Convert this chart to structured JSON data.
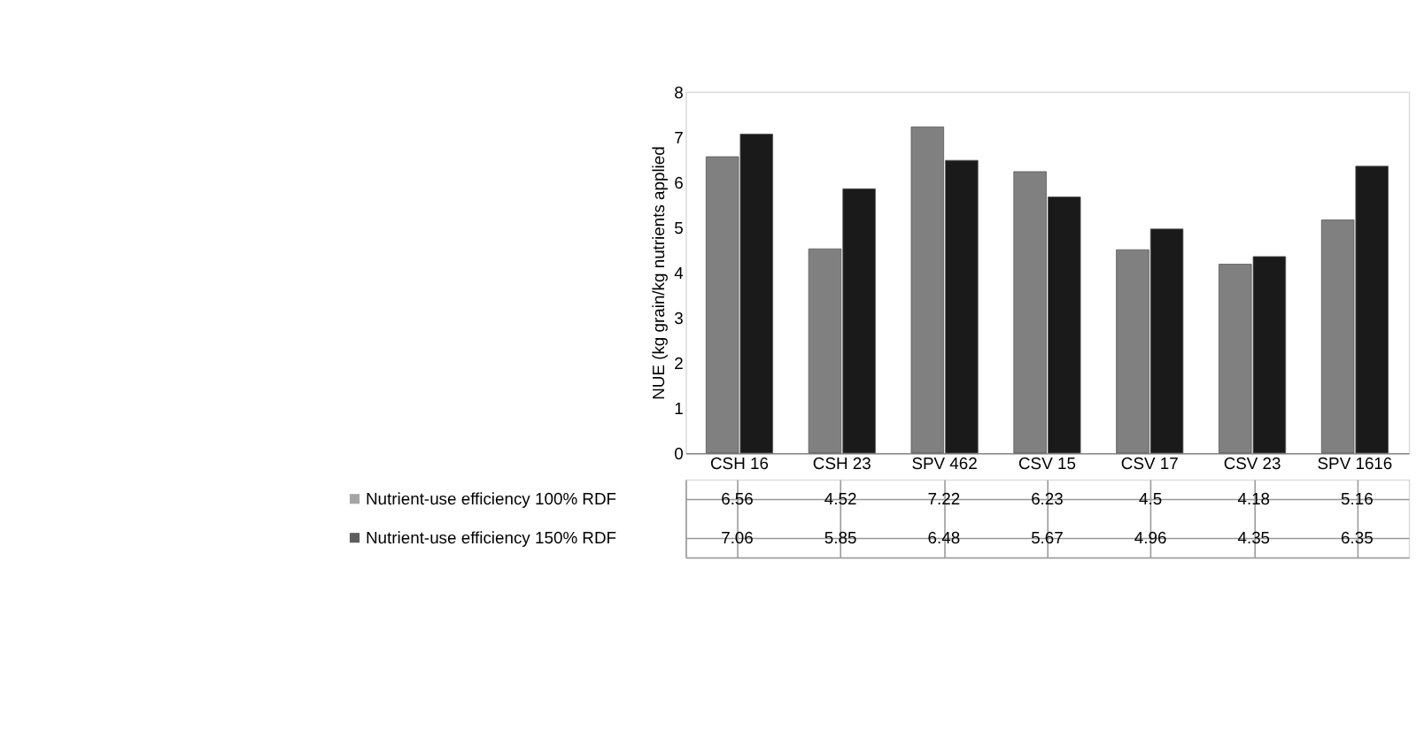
{
  "chart_data": {
    "type": "bar",
    "ylabel": "NUE (kg grain/kg nutrients applied",
    "categories": [
      "CSH 16",
      "CSH 23",
      "SPV 462",
      "CSV 15",
      "CSV 17",
      "CSV 23",
      "SPV 1616"
    ],
    "series": [
      {
        "name": "Nutrient-use efficiency 100% RDF",
        "color": "#808080",
        "values": [
          6.56,
          4.52,
          7.22,
          6.23,
          4.5,
          4.18,
          5.16
        ]
      },
      {
        "name": "Nutrient-use efficiency 150% RDF",
        "color": "#1a1a1a",
        "values": [
          7.06,
          5.85,
          6.48,
          5.67,
          4.96,
          4.35,
          6.35
        ]
      }
    ],
    "ylim": [
      0,
      8
    ],
    "yticks": [
      0,
      1,
      2,
      3,
      4,
      5,
      6,
      7,
      8
    ],
    "grid": false,
    "legend": "bottom left",
    "data_labels": true
  }
}
